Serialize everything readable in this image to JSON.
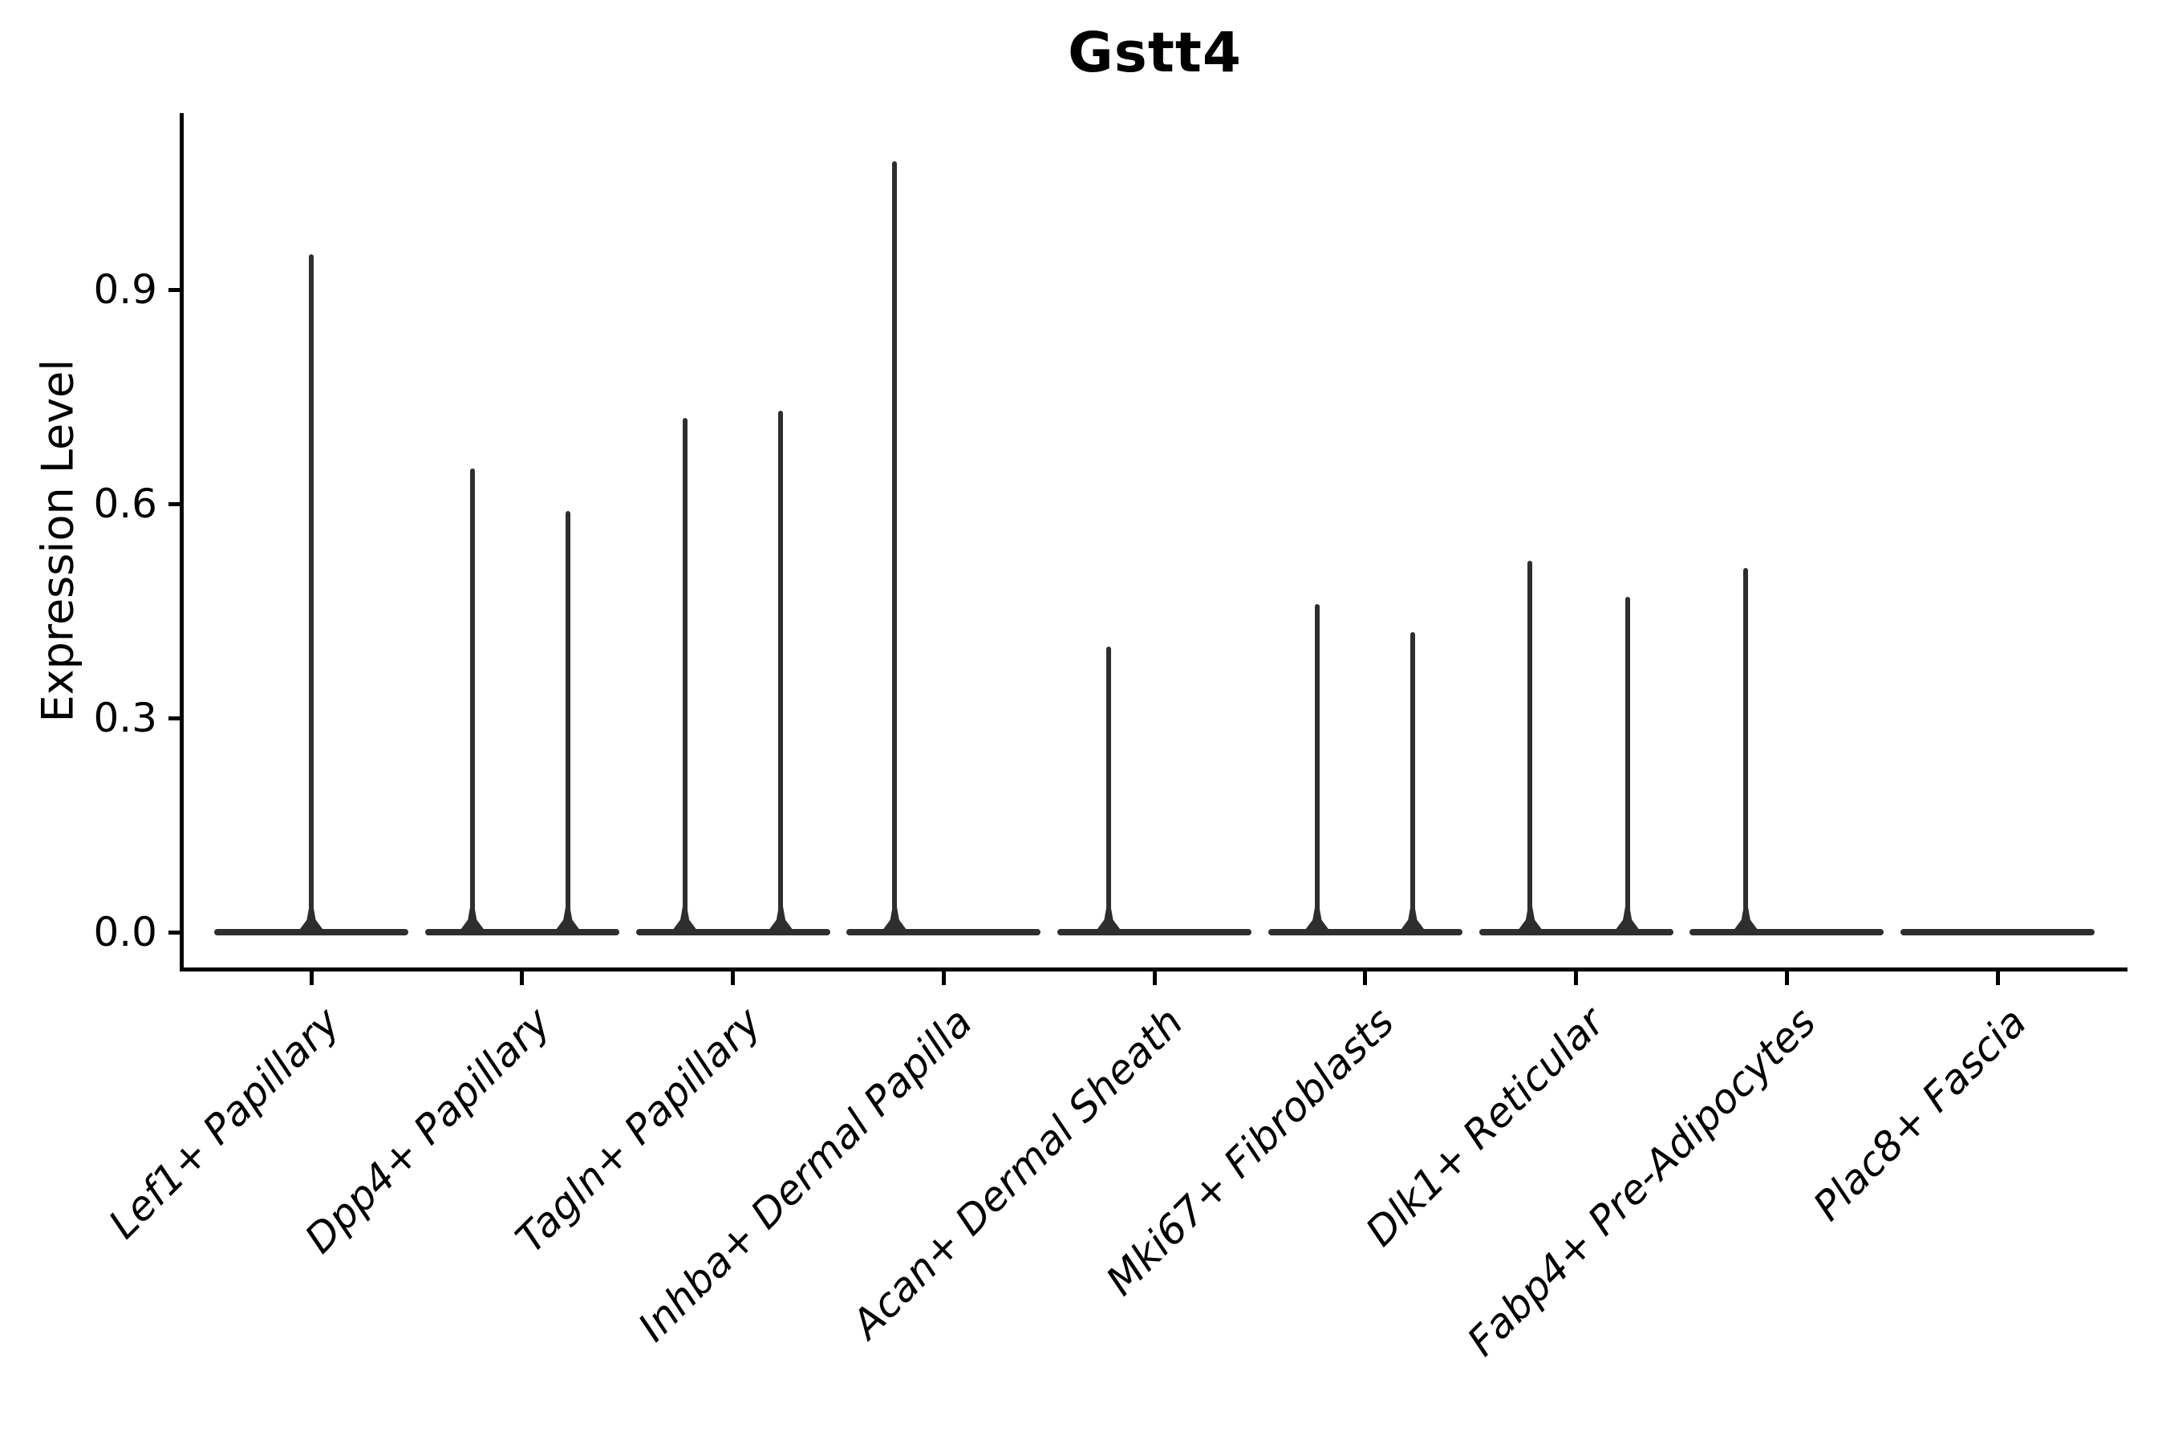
{
  "figure": {
    "title": "Gstt4"
  },
  "y_axis": {
    "label": "Expression Level",
    "tick_labels": [
      "0.0",
      "0.3",
      "0.6",
      "0.9"
    ],
    "tick_values": [
      0.0,
      0.3,
      0.6,
      0.9
    ],
    "limits": [
      -0.052,
      1.147
    ]
  },
  "x_axis": {
    "categories": [
      "Lef1+ Papillary",
      "Dpp4+ Papillary",
      "Tagln+ Papillary",
      "Inhba+ Dermal Papilla",
      "Acan+ Dermal Sheath",
      "Mki67+ Fibroblasts",
      "Dlk1+ Reticular",
      "Fabp4+ Pre-Adipocytes",
      "Plac8+ Fascia"
    ]
  },
  "chart_data": {
    "type": "violin",
    "title": "Gstt4",
    "xlabel": "",
    "ylabel": "Expression Level",
    "ylim": [
      -0.052,
      1.147
    ],
    "yticks": [
      0.0,
      0.3,
      0.6,
      0.9
    ],
    "grid": false,
    "legend": false,
    "baseline_value": 0.0,
    "violin_total_width": 0.92,
    "categories": [
      "Lef1+ Papillary",
      "Dpp4+ Papillary",
      "Tagln+ Papillary",
      "Inhba+ Dermal Papilla",
      "Acan+ Dermal Sheath",
      "Mki67+ Fibroblasts",
      "Dlk1+ Reticular",
      "Fabp4+ Pre-Adipocytes",
      "Plac8+ Fascia"
    ],
    "violins": [
      {
        "category": "Lef1+ Papillary",
        "base_at_zero": true,
        "spikes": [
          {
            "offset": 0.0,
            "max": 0.95
          }
        ]
      },
      {
        "category": "Dpp4+ Papillary",
        "base_at_zero": true,
        "spikes": [
          {
            "offset": -0.236,
            "max": 0.65
          },
          {
            "offset": 0.217,
            "max": 0.59
          }
        ]
      },
      {
        "category": "Tagln+ Papillary",
        "base_at_zero": true,
        "spikes": [
          {
            "offset": -0.228,
            "max": 0.72
          },
          {
            "offset": 0.228,
            "max": 0.73
          }
        ]
      },
      {
        "category": "Inhba+ Dermal Papilla",
        "base_at_zero": true,
        "spikes": [
          {
            "offset": -0.232,
            "max": 1.08
          }
        ]
      },
      {
        "category": "Acan+ Dermal Sheath",
        "base_at_zero": true,
        "spikes": [
          {
            "offset": -0.217,
            "max": 0.4
          }
        ]
      },
      {
        "category": "Mki67+ Fibroblasts",
        "base_at_zero": true,
        "spikes": [
          {
            "offset": -0.228,
            "max": 0.46
          },
          {
            "offset": 0.225,
            "max": 0.42
          }
        ]
      },
      {
        "category": "Dlk1+ Reticular",
        "base_at_zero": true,
        "spikes": [
          {
            "offset": -0.217,
            "max": 0.52
          },
          {
            "offset": 0.244,
            "max": 0.47
          }
        ]
      },
      {
        "category": "Fabp4+ Pre-Adipocytes",
        "base_at_zero": true,
        "spikes": [
          {
            "offset": -0.194,
            "max": 0.51
          }
        ]
      },
      {
        "category": "Plac8+ Fascia",
        "base_at_zero": true,
        "spikes": []
      }
    ]
  },
  "style": {
    "violin_color": "#2e2e2e",
    "axis_color": "#000000",
    "text_color": "#000000",
    "background_color": "#ffffff"
  }
}
